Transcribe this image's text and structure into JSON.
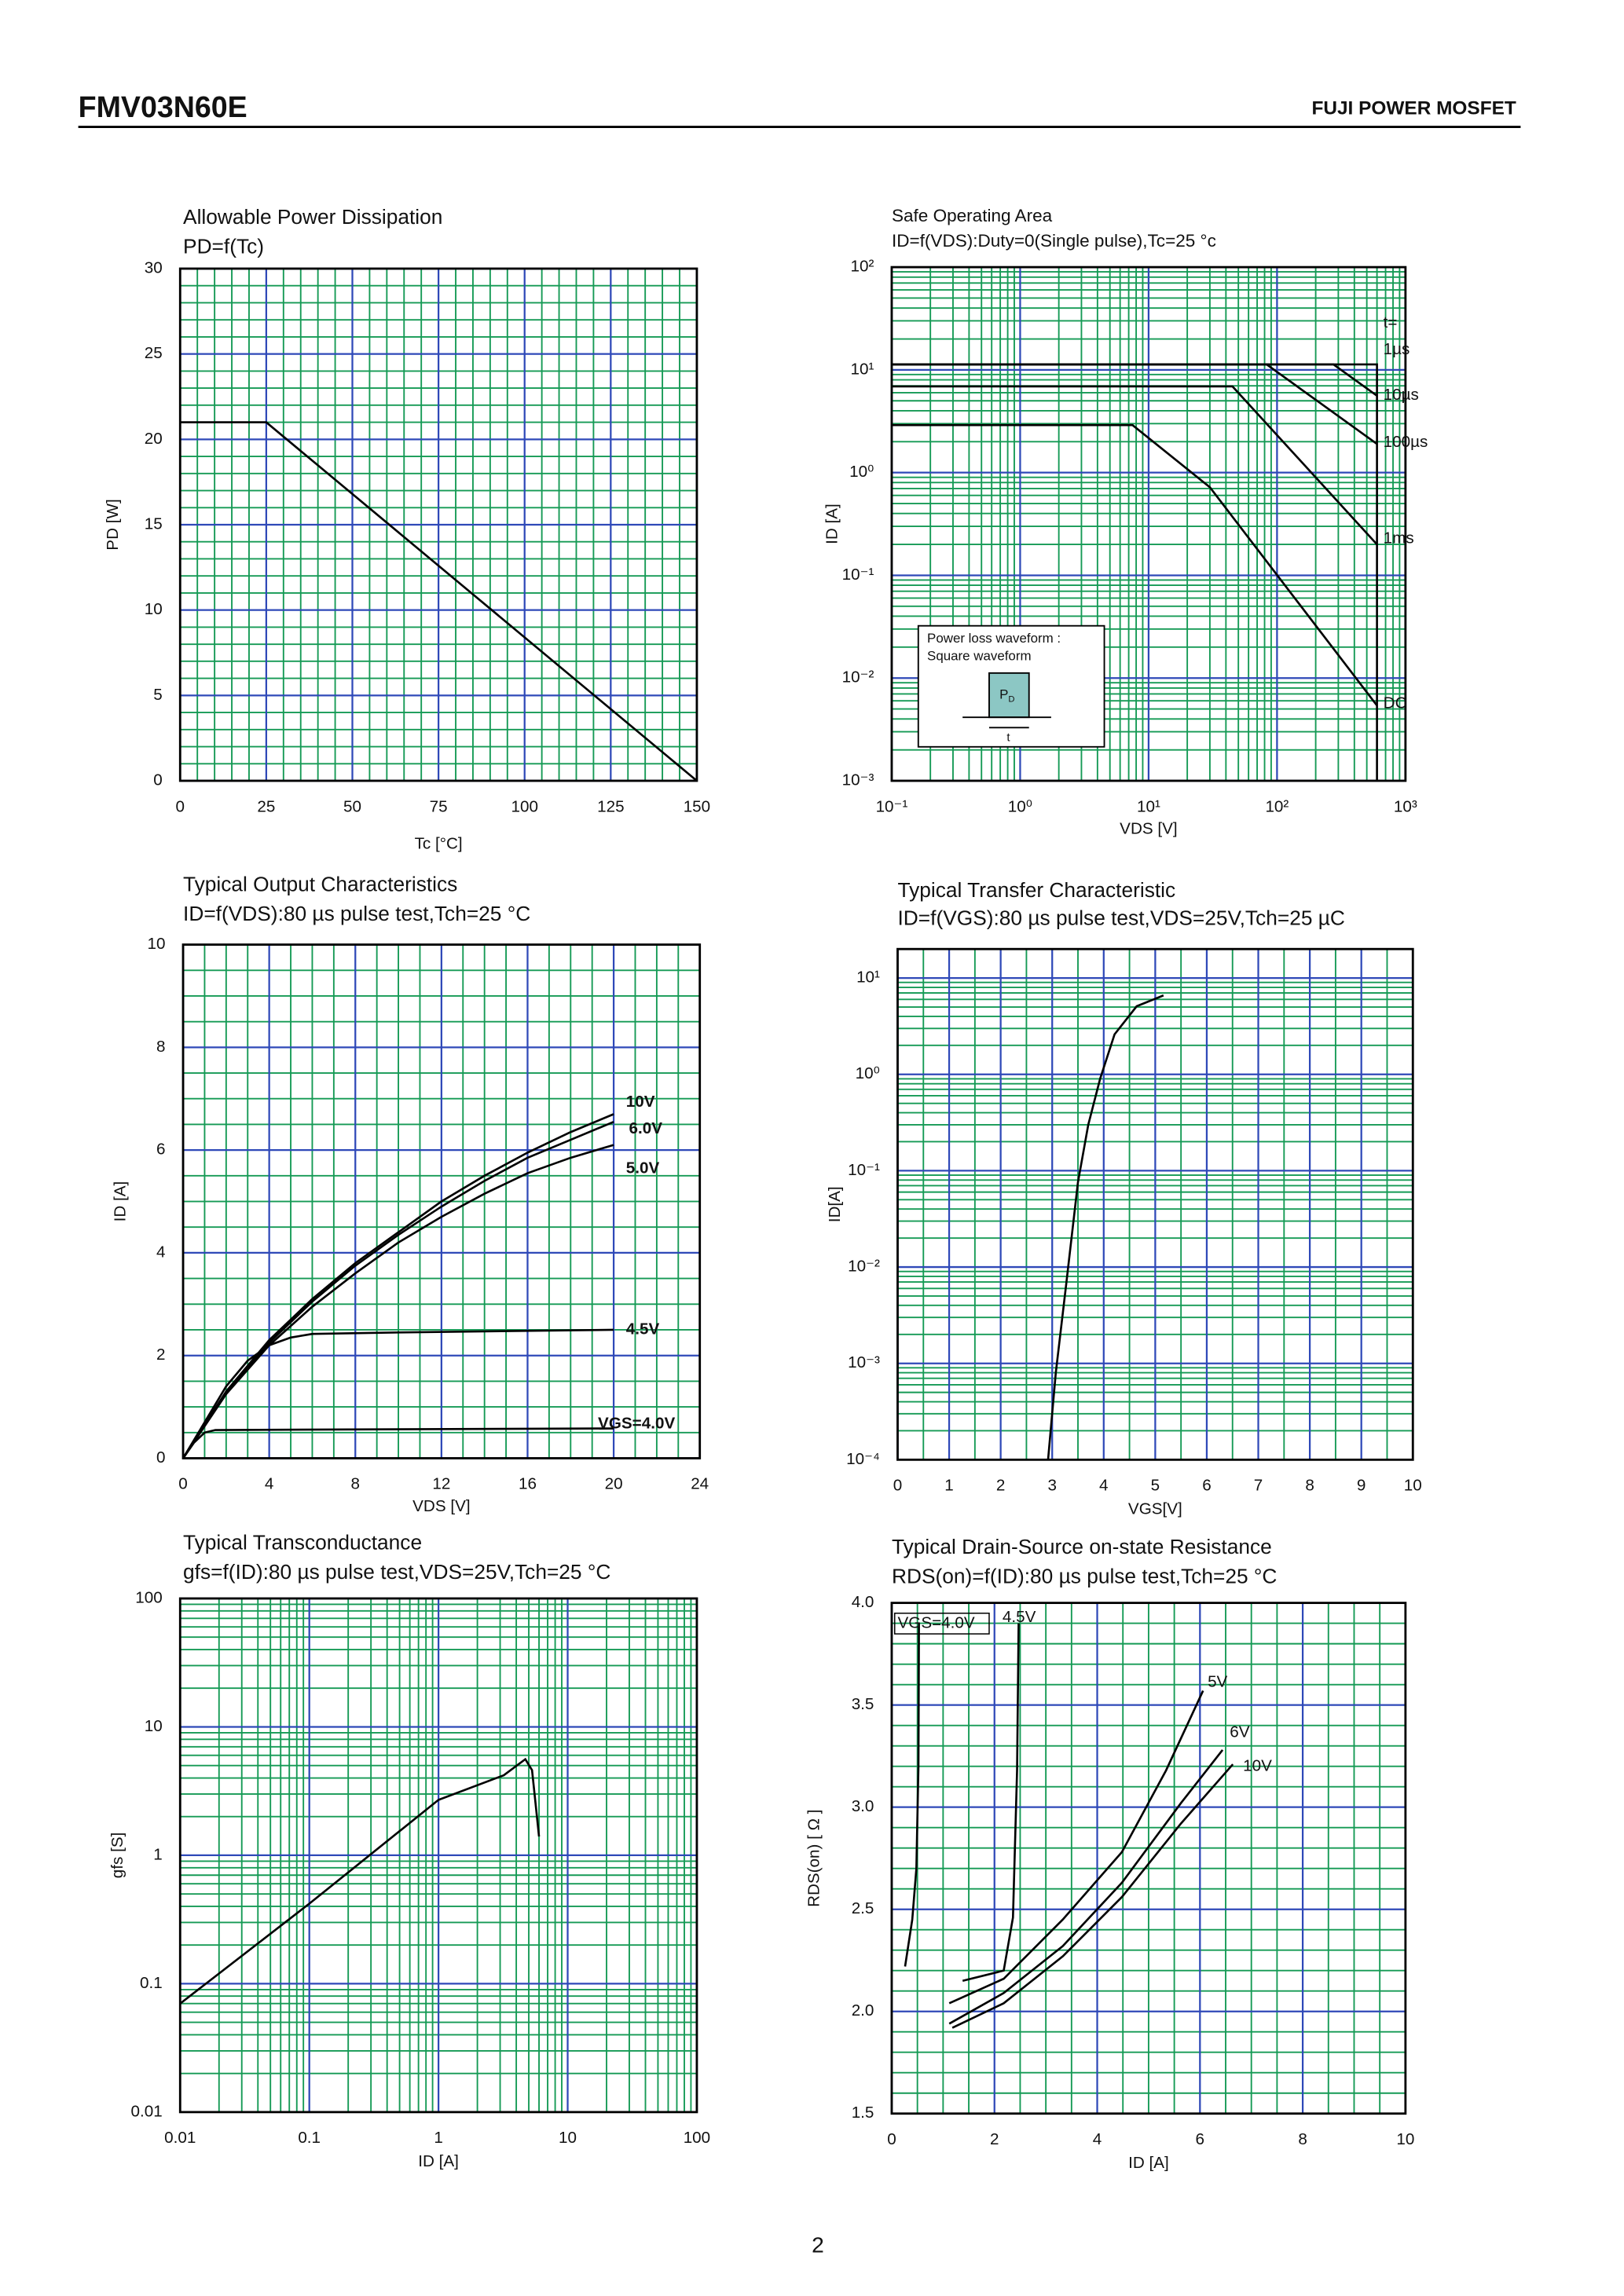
{
  "header": {
    "part_number": "FMV03N60E",
    "category": "FUJI POWER MOSFET"
  },
  "footer": {
    "page": "2"
  },
  "grid_colors": {
    "major": "#2f49b8",
    "minor": "#159a55"
  },
  "chart_data": [
    {
      "type": "line",
      "title": "Allowable Power Dissipation",
      "subtitle": "PD=f(Tc)",
      "xlabel": "Tc [°C]",
      "ylabel": "PD [W]",
      "xlim": [
        0,
        150
      ],
      "ylim": [
        0,
        30
      ],
      "xticks": [
        0,
        25,
        50,
        75,
        100,
        125,
        150
      ],
      "yticks": [
        0,
        5,
        10,
        15,
        20,
        25,
        30
      ],
      "grid": true,
      "series": [
        {
          "color": "#000000",
          "x": [
            0,
            25,
            150
          ],
          "y": [
            21,
            21,
            0
          ]
        }
      ]
    },
    {
      "type": "line",
      "title": "Safe Operating Area",
      "subtitle": "ID=f(VDS):Duty=0(Single pulse),Tc=25 °c",
      "xlabel": "VDS [V]",
      "ylabel": "ID [A]",
      "xscale": "log",
      "yscale": "log",
      "xlim": [
        0.1,
        1000
      ],
      "ylim": [
        0.001,
        100
      ],
      "xticks": [
        {
          "value": 0.1,
          "label": "10⁻¹"
        },
        {
          "value": 1,
          "label": "10⁰"
        },
        {
          "value": 10,
          "label": "10¹"
        },
        {
          "value": 100,
          "label": "10²"
        },
        {
          "value": 1000,
          "label": "10³"
        }
      ],
      "yticks": [
        {
          "value": 0.001,
          "label": "10⁻³"
        },
        {
          "value": 0.01,
          "label": "10⁻²"
        },
        {
          "value": 0.1,
          "label": "10⁻¹"
        },
        {
          "value": 1,
          "label": "10⁰"
        },
        {
          "value": 10,
          "label": "10¹"
        },
        {
          "value": 100,
          "label": "10²"
        }
      ],
      "grid": true,
      "annotation": "t=",
      "inset": {
        "lines": [
          "Power loss waveform :",
          "Square waveform"
        ],
        "pulse_label": "P",
        "pulse_sub": "D",
        "width_label": "t"
      },
      "series": [
        {
          "name": "1µs",
          "color": "#000000",
          "x": [
            0.1,
            600,
            600
          ],
          "y": [
            11.3,
            11.3,
            0.001
          ]
        },
        {
          "name": "10µs",
          "color": "#000000",
          "x": [
            0.1,
            275,
            600
          ],
          "y": [
            11.3,
            11.3,
            5.6
          ]
        },
        {
          "name": "100µs",
          "color": "#000000",
          "x": [
            0.1,
            83,
            600
          ],
          "y": [
            11.3,
            11.3,
            1.9
          ]
        },
        {
          "name": "1ms",
          "color": "#000000",
          "x": [
            0.1,
            45,
            600
          ],
          "y": [
            6.9,
            6.9,
            0.2
          ]
        },
        {
          "name": "DC",
          "color": "#000000",
          "x": [
            0.1,
            7.5,
            30,
            600
          ],
          "y": [
            2.9,
            2.9,
            0.72,
            0.0054
          ]
        }
      ]
    },
    {
      "type": "line",
      "title": "Typical Output Characteristics",
      "subtitle": "ID=f(VDS):80 µs pulse test,Tch=25 °C",
      "xlabel": "VDS [V]",
      "ylabel": "ID [A]",
      "xlim": [
        0,
        24
      ],
      "ylim": [
        0,
        10
      ],
      "xticks": [
        0,
        4,
        8,
        12,
        16,
        20,
        24
      ],
      "yticks": [
        0,
        2,
        4,
        6,
        8,
        10
      ],
      "grid": true,
      "series": [
        {
          "name": "10V",
          "color": "#000000",
          "x": [
            0,
            2,
            4,
            6,
            8,
            10,
            12,
            14,
            16,
            18,
            20
          ],
          "y": [
            0,
            1.3,
            2.3,
            3.1,
            3.8,
            4.4,
            5.0,
            5.5,
            5.95,
            6.35,
            6.7
          ]
        },
        {
          "name": "6.0V",
          "color": "#000000",
          "x": [
            0,
            2,
            4,
            6,
            8,
            10,
            12,
            14,
            16,
            18,
            20
          ],
          "y": [
            0,
            1.28,
            2.25,
            3.05,
            3.75,
            4.35,
            4.9,
            5.4,
            5.85,
            6.2,
            6.55
          ]
        },
        {
          "name": "5.0V",
          "color": "#000000",
          "x": [
            0,
            2,
            4,
            6,
            8,
            10,
            12,
            14,
            16,
            18,
            20
          ],
          "y": [
            0,
            1.25,
            2.2,
            2.95,
            3.6,
            4.2,
            4.7,
            5.15,
            5.55,
            5.85,
            6.1
          ]
        },
        {
          "name": "4.5V",
          "color": "#000000",
          "x": [
            0,
            1,
            2,
            3,
            4,
            5,
            6,
            10,
            20
          ],
          "y": [
            0,
            0.7,
            1.4,
            1.9,
            2.2,
            2.35,
            2.42,
            2.45,
            2.5
          ]
        },
        {
          "name": "VGS=4.0V",
          "color": "#000000",
          "x": [
            0,
            0.5,
            1,
            1.5,
            20
          ],
          "y": [
            0,
            0.3,
            0.5,
            0.55,
            0.58
          ]
        }
      ]
    },
    {
      "type": "line",
      "title": "Typical Transfer Characteristic",
      "subtitle": "ID=f(VGS):80 µs pulse test,VDS=25V,Tch=25 µC",
      "xlabel": "VGS[V]",
      "ylabel": "ID[A]",
      "yscale": "log",
      "xlim": [
        0,
        10
      ],
      "ylim": [
        0.0001,
        20
      ],
      "xticks": [
        0,
        1,
        2,
        3,
        4,
        5,
        6,
        7,
        8,
        9,
        10
      ],
      "yticks": [
        {
          "value": 0.0001,
          "label": "10⁻⁴"
        },
        {
          "value": 0.001,
          "label": "10⁻³"
        },
        {
          "value": 0.01,
          "label": "10⁻²"
        },
        {
          "value": 0.1,
          "label": "10⁻¹"
        },
        {
          "value": 1,
          "label": "10⁰"
        },
        {
          "value": 10,
          "label": "10¹"
        }
      ],
      "grid": true,
      "series": [
        {
          "color": "#000000",
          "x": [
            2.92,
            3.07,
            3.27,
            3.5,
            3.7,
            3.93,
            4.21,
            4.64,
            5.16
          ],
          "y": [
            0.0001,
            0.0008,
            0.0065,
            0.076,
            0.3,
            0.9,
            2.6,
            5.1,
            6.6
          ]
        }
      ]
    },
    {
      "type": "line",
      "title": "Typical Transconductance",
      "subtitle": "gfs=f(ID):80 µs pulse test,VDS=25V,Tch=25  °C",
      "xlabel": "ID [A]",
      "ylabel": "gfs [S]",
      "xscale": "log",
      "yscale": "log",
      "xlim": [
        0.01,
        100
      ],
      "ylim": [
        0.01,
        100
      ],
      "xticks": [
        0.01,
        0.1,
        1,
        10,
        100
      ],
      "yticks": [
        0.01,
        0.1,
        1,
        10,
        100
      ],
      "grid": true,
      "series": [
        {
          "color": "#000000",
          "x": [
            0.01,
            0.1,
            1,
            3.2,
            4.7,
            5.3,
            6.0
          ],
          "y": [
            0.07,
            0.42,
            2.7,
            4.2,
            5.6,
            4.6,
            1.4
          ]
        }
      ]
    },
    {
      "type": "line",
      "title": "Typical Drain-Source on-state Resistance",
      "subtitle": "RDS(on)=f(ID):80  µs pulse test,Tch=25  °C",
      "xlabel": "ID [A]",
      "ylabel": "RDS(on) [ Ω ]",
      "xlim": [
        0,
        10
      ],
      "ylim": [
        1.5,
        4.0
      ],
      "xticks": [
        0,
        2,
        4,
        6,
        8,
        10
      ],
      "yticks": [
        1.5,
        {
          "value": 2,
          "label": "2.0"
        },
        2.5,
        {
          "value": 3,
          "label": "3.0"
        },
        3.5,
        {
          "value": 4,
          "label": "4.0"
        }
      ],
      "grid": true,
      "series": [
        {
          "name": "VGS=4.0V",
          "color": "#000000",
          "x": [
            0.26,
            0.4,
            0.48,
            0.52,
            0.53
          ],
          "y": [
            2.22,
            2.45,
            2.7,
            3.2,
            3.9
          ]
        },
        {
          "name": "4.5V",
          "color": "#000000",
          "x": [
            1.38,
            2.18,
            2.36,
            2.44,
            2.47
          ],
          "y": [
            2.15,
            2.2,
            2.46,
            3.18,
            3.9
          ]
        },
        {
          "name": "5V",
          "color": "#000000",
          "x": [
            1.12,
            2.18,
            3.33,
            4.48,
            5.34,
            6.06
          ],
          "y": [
            2.04,
            2.16,
            2.45,
            2.78,
            3.18,
            3.57
          ]
        },
        {
          "name": "6V",
          "color": "#000000",
          "x": [
            1.12,
            2.18,
            3.33,
            4.48,
            5.63,
            6.44
          ],
          "y": [
            1.94,
            2.09,
            2.32,
            2.63,
            3.02,
            3.28
          ]
        },
        {
          "name": "10V",
          "color": "#000000",
          "x": [
            1.18,
            2.18,
            3.33,
            4.48,
            5.63,
            6.64
          ],
          "y": [
            1.92,
            2.04,
            2.27,
            2.56,
            2.92,
            3.21
          ]
        }
      ]
    }
  ]
}
